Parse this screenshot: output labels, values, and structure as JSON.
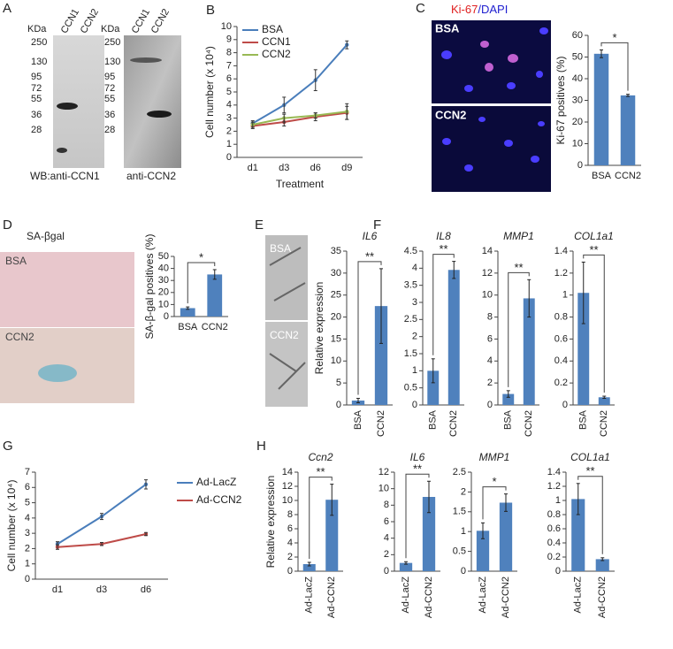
{
  "panel_labels": [
    "A",
    "B",
    "C",
    "D",
    "E",
    "F",
    "G",
    "H"
  ],
  "blots": [
    {
      "unit": "KDa",
      "lanes": [
        "CCN1",
        "CCN2"
      ],
      "markers": [
        250,
        130,
        95,
        72,
        55,
        36,
        28
      ],
      "caption": "WB:anti-CCN1"
    },
    {
      "unit": "KDa",
      "lanes": [
        "CCN1",
        "CCN2"
      ],
      "markers": [
        250,
        130,
        95,
        72,
        55,
        36,
        28
      ],
      "caption": "anti-CCN2"
    }
  ],
  "micrographs": {
    "C": {
      "stain": [
        "Ki-67",
        "/DAPI"
      ],
      "labels": [
        "BSA",
        "CCN2"
      ]
    },
    "D": {
      "title": "SA-βgal",
      "labels": [
        "BSA",
        "CCN2"
      ]
    },
    "E": {
      "labels": [
        "BSA",
        "CCN2"
      ]
    }
  },
  "chart_data": [
    {
      "type": "line",
      "y_label": "Cell number (x 10⁴)",
      "x_label": "Treatment",
      "categories": [
        "d1",
        "d3",
        "d6",
        "d9"
      ],
      "ylim": [
        0,
        10
      ],
      "yticks": [
        0,
        1,
        2,
        3,
        4,
        5,
        6,
        7,
        8,
        9,
        10
      ],
      "legend": "upper left",
      "series": [
        {
          "name": "BSA",
          "color": "#4a7ebb",
          "values": [
            2.6,
            4.0,
            5.9,
            8.6
          ],
          "errors": [
            0.2,
            0.6,
            0.8,
            0.3
          ]
        },
        {
          "name": "CCN1",
          "color": "#be4b48",
          "values": [
            2.4,
            2.7,
            3.1,
            3.4
          ],
          "errors": [
            0.2,
            0.3,
            0.3,
            0.5
          ]
        },
        {
          "name": "CCN2",
          "color": "#98b954",
          "values": [
            2.5,
            3.0,
            3.2,
            3.5
          ],
          "errors": [
            0.2,
            0.3,
            0.2,
            0.6
          ]
        }
      ]
    },
    {
      "type": "bar",
      "y_label": "Ki-67 positives (%)",
      "categories": [
        "BSA",
        "CCN2"
      ],
      "values": [
        51.5,
        32.3
      ],
      "errors": [
        1.8,
        0.5
      ],
      "color": "#4f81bd",
      "ylim": [
        0,
        60
      ],
      "yticks": [
        0,
        10,
        20,
        30,
        40,
        50,
        60
      ],
      "significance": "*"
    },
    {
      "type": "bar",
      "y_label": "SA-β-gal positives (%)",
      "categories": [
        "BSA",
        "CCN2"
      ],
      "values": [
        7,
        35
      ],
      "errors": [
        1,
        4
      ],
      "color": "#4f81bd",
      "ylim": [
        0,
        50
      ],
      "yticks": [
        0,
        10,
        20,
        30,
        40,
        50
      ],
      "significance": "*"
    },
    {
      "type": "bar",
      "title": "IL6",
      "y_label": "Relative expression",
      "categories": [
        "BSA",
        "CCN2"
      ],
      "values": [
        1,
        22.5
      ],
      "errors": [
        0.5,
        8.5
      ],
      "color": "#4f81bd",
      "ylim": [
        0,
        35
      ],
      "yticks": [
        0,
        5,
        10,
        15,
        20,
        25,
        30,
        35
      ],
      "significance": "**"
    },
    {
      "type": "bar",
      "title": "IL8",
      "categories": [
        "BSA",
        "CCN2"
      ],
      "values": [
        1,
        3.95
      ],
      "errors": [
        0.35,
        0.25
      ],
      "color": "#4f81bd",
      "ylim": [
        0,
        4.5
      ],
      "yticks": [
        0,
        0.5,
        1,
        1.5,
        2,
        2.5,
        3,
        3.5,
        4,
        4.5
      ],
      "significance": "**"
    },
    {
      "type": "bar",
      "title": "MMP1",
      "categories": [
        "BSA",
        "CCN2"
      ],
      "values": [
        1,
        9.7
      ],
      "errors": [
        0.3,
        1.7
      ],
      "color": "#4f81bd",
      "ylim": [
        0,
        14
      ],
      "yticks": [
        0,
        2,
        4,
        6,
        8,
        10,
        12,
        14
      ],
      "significance": "**"
    },
    {
      "type": "bar",
      "title": "COL1a1",
      "categories": [
        "BSA",
        "CCN2"
      ],
      "values": [
        1.02,
        0.07
      ],
      "errors": [
        0.28,
        0.01
      ],
      "color": "#4f81bd",
      "ylim": [
        0,
        1.4
      ],
      "yticks": [
        0,
        0.2,
        0.4,
        0.6,
        0.8,
        1,
        1.2,
        1.4
      ],
      "significance": "**"
    },
    {
      "type": "line",
      "y_label": "Cell number (x 10⁴)",
      "categories": [
        "d1",
        "d3",
        "d6"
      ],
      "ylim": [
        0,
        7
      ],
      "yticks": [
        0,
        1,
        2,
        3,
        4,
        5,
        6,
        7
      ],
      "legend": "right",
      "series": [
        {
          "name": "Ad-LacZ",
          "color": "#4a7ebb",
          "values": [
            2.3,
            4.1,
            6.2
          ],
          "errors": [
            0.15,
            0.2,
            0.3
          ]
        },
        {
          "name": "Ad-CCN2",
          "color": "#be4b48",
          "values": [
            2.1,
            2.3,
            2.95
          ],
          "errors": [
            0.15,
            0.1,
            0.1
          ]
        }
      ]
    },
    {
      "type": "bar",
      "title": "Ccn2",
      "y_label": "Relative expression",
      "categories": [
        "Ad-LacZ",
        "Ad-CCN2"
      ],
      "values": [
        1,
        10.1
      ],
      "errors": [
        0.25,
        2.2
      ],
      "color": "#4f81bd",
      "ylim": [
        0,
        14
      ],
      "yticks": [
        0,
        2,
        4,
        6,
        8,
        10,
        12,
        14
      ],
      "significance": "**"
    },
    {
      "type": "bar",
      "title": "IL6",
      "categories": [
        "Ad-LacZ",
        "Ad-CCN2"
      ],
      "values": [
        1,
        9
      ],
      "errors": [
        0.15,
        1.9
      ],
      "color": "#4f81bd",
      "ylim": [
        0,
        12
      ],
      "yticks": [
        0,
        2,
        4,
        6,
        8,
        10,
        12
      ],
      "significance": "**"
    },
    {
      "type": "bar",
      "title": "MMP1",
      "categories": [
        "Ad-LacZ",
        "Ad-CCN2"
      ],
      "values": [
        1.02,
        1.73
      ],
      "errors": [
        0.2,
        0.22
      ],
      "color": "#4f81bd",
      "ylim": [
        0,
        2.5
      ],
      "yticks": [
        0,
        0.5,
        1,
        1.5,
        2,
        2.5
      ],
      "significance": "*"
    },
    {
      "type": "bar",
      "title": "COL1a1",
      "categories": [
        "Ad-LacZ",
        "Ad-CCN2"
      ],
      "values": [
        1.02,
        0.17
      ],
      "errors": [
        0.22,
        0.02
      ],
      "color": "#4f81bd",
      "ylim": [
        0,
        1.4
      ],
      "yticks": [
        0,
        0.2,
        0.4,
        0.6,
        0.8,
        1,
        1.2,
        1.4
      ],
      "significance": "**"
    }
  ]
}
